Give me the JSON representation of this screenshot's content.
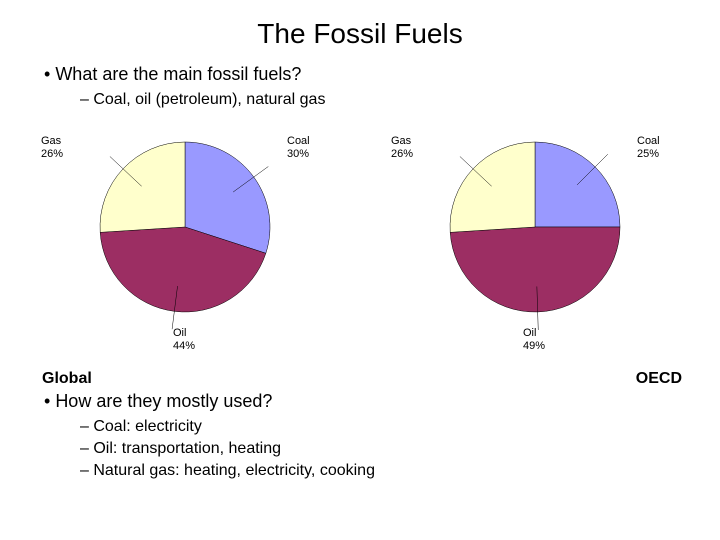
{
  "title": "The Fossil Fuels",
  "q1": {
    "question": "What are the main fossil fuels?",
    "answer": "Coal, oil (petroleum), natural gas"
  },
  "charts": {
    "background_color": "#ffffff",
    "label_fontsize": 11,
    "label_color": "#000000",
    "global": {
      "type": "pie",
      "caption": "Global",
      "radius": 85,
      "slices": [
        {
          "name": "Coal",
          "value": 30,
          "label": "Coal\n30%",
          "color": "#9999ff",
          "angle_start": 0,
          "angle_end": 108
        },
        {
          "name": "Oil",
          "value": 44,
          "label": "Oil\n44%",
          "color": "#9c2e63",
          "angle_start": 108,
          "angle_end": 266.4
        },
        {
          "name": "Gas",
          "value": 26,
          "label": "Gas\n26%",
          "color": "#ffffcc",
          "angle_start": 266.4,
          "angle_end": 360
        }
      ]
    },
    "oecd": {
      "type": "pie",
      "caption": "OECD",
      "radius": 85,
      "slices": [
        {
          "name": "Coal",
          "value": 25,
          "label": "Coal\n25%",
          "color": "#9999ff",
          "angle_start": 0,
          "angle_end": 90
        },
        {
          "name": "Oil",
          "value": 49,
          "label": "Oil\n49%",
          "color": "#9c2e63",
          "angle_start": 90,
          "angle_end": 266.4
        },
        {
          "name": "Gas",
          "value": 26,
          "label": "Gas\n26%",
          "color": "#ffffcc",
          "angle_start": 266.4,
          "angle_end": 360
        }
      ]
    }
  },
  "q2": {
    "question": "How are they mostly used?",
    "answers": [
      "Coal: electricity",
      "Oil: transportation, heating",
      "Natural gas: heating, electricity, cooking"
    ]
  }
}
